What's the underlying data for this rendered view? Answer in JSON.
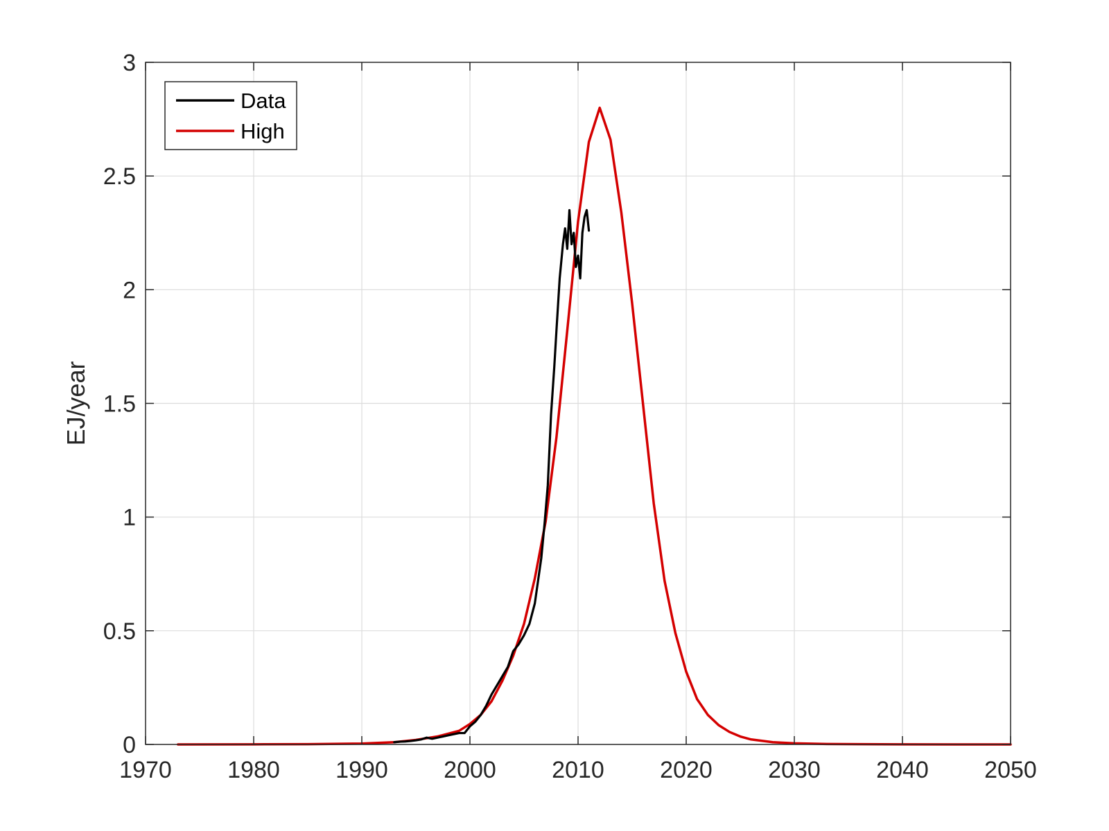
{
  "chart_data": {
    "type": "line",
    "title": "",
    "xlabel": "",
    "ylabel": "EJ/year",
    "xlim": [
      1970,
      2050
    ],
    "ylim": [
      0,
      3
    ],
    "xticks": [
      "1970",
      "1980",
      "1990",
      "2000",
      "2010",
      "2020",
      "2030",
      "2040",
      "2050"
    ],
    "yticks": [
      "0",
      "0.5",
      "1",
      "1.5",
      "2",
      "2.5",
      "3"
    ],
    "grid": true,
    "legend_position": "top-left",
    "series": [
      {
        "name": "Data",
        "color": "#000000",
        "x": [
          1993.0,
          1993.5,
          1994.0,
          1994.5,
          1995.0,
          1995.5,
          1996.0,
          1996.5,
          1997.0,
          1997.5,
          1998.0,
          1998.5,
          1999.0,
          1999.5,
          2000.0,
          2000.5,
          2001.0,
          2001.5,
          2002.0,
          2002.5,
          2003.0,
          2003.5,
          2004.0,
          2004.5,
          2005.0,
          2005.5,
          2006.0,
          2006.3,
          2006.6,
          2006.9,
          2007.2,
          2007.5,
          2007.8,
          2008.0,
          2008.3,
          2008.6,
          2008.8,
          2009.0,
          2009.2,
          2009.4,
          2009.6,
          2009.8,
          2010.0,
          2010.2,
          2010.4,
          2010.6,
          2010.8,
          2011.0
        ],
        "y": [
          0.01,
          0.012,
          0.013,
          0.015,
          0.018,
          0.022,
          0.03,
          0.025,
          0.03,
          0.035,
          0.04,
          0.045,
          0.05,
          0.05,
          0.08,
          0.1,
          0.13,
          0.17,
          0.22,
          0.26,
          0.3,
          0.34,
          0.41,
          0.44,
          0.48,
          0.53,
          0.62,
          0.72,
          0.82,
          0.97,
          1.14,
          1.45,
          1.66,
          1.82,
          2.05,
          2.2,
          2.27,
          2.18,
          2.35,
          2.2,
          2.25,
          2.1,
          2.15,
          2.05,
          2.25,
          2.32,
          2.35,
          2.26
        ]
      },
      {
        "name": "High",
        "color": "#d40000",
        "x": [
          1973,
          1980,
          1985,
          1990,
          1993,
          1995,
          1997,
          1999,
          2000,
          2001,
          2002,
          2003,
          2004,
          2005,
          2006,
          2007,
          2008,
          2009,
          2010,
          2011,
          2012,
          2013,
          2014,
          2015,
          2016,
          2017,
          2018,
          2019,
          2020,
          2021,
          2022,
          2023,
          2024,
          2025,
          2026,
          2028,
          2030,
          2033,
          2036,
          2040,
          2045,
          2050
        ],
        "y": [
          0,
          0.0005,
          0.001,
          0.004,
          0.01,
          0.02,
          0.035,
          0.06,
          0.09,
          0.13,
          0.19,
          0.28,
          0.39,
          0.53,
          0.73,
          0.98,
          1.35,
          1.82,
          2.3,
          2.65,
          2.8,
          2.66,
          2.34,
          1.94,
          1.5,
          1.06,
          0.72,
          0.49,
          0.32,
          0.2,
          0.13,
          0.085,
          0.055,
          0.035,
          0.022,
          0.01,
          0.005,
          0.002,
          0.001,
          0.0003,
          0.0001,
          0
        ]
      }
    ]
  }
}
